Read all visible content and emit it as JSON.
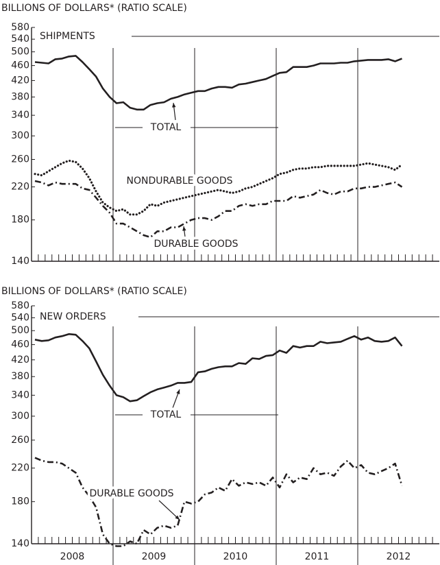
{
  "chart_data": [
    {
      "type": "line",
      "y_label": "BILLIONS OF DOLLARS* (RATIO SCALE)",
      "title": "SHIPMENTS",
      "log_scale": true,
      "grid": false,
      "x": [
        2008.042,
        2008.125,
        2008.208,
        2008.292,
        2008.375,
        2008.458,
        2008.542,
        2008.625,
        2008.708,
        2008.792,
        2008.875,
        2008.958,
        2009.042,
        2009.125,
        2009.208,
        2009.292,
        2009.375,
        2009.458,
        2009.542,
        2009.625,
        2009.708,
        2009.792,
        2009.875,
        2009.958,
        2010.042,
        2010.125,
        2010.208,
        2010.292,
        2010.375,
        2010.458,
        2010.542,
        2010.625,
        2010.708,
        2010.792,
        2010.875,
        2010.958,
        2011.042,
        2011.125,
        2011.208,
        2011.292,
        2011.375,
        2011.458,
        2011.542,
        2011.625,
        2011.708,
        2011.792,
        2011.875,
        2011.958,
        2012.042,
        2012.125,
        2012.208,
        2012.292,
        2012.375,
        2012.458,
        2012.542
      ],
      "xlim": [
        2008,
        2013
      ],
      "xticks": [
        2008,
        2009,
        2010,
        2011,
        2012
      ],
      "ylim": [
        140,
        580
      ],
      "yticks": [
        140,
        180,
        220,
        260,
        300,
        340,
        380,
        420,
        460,
        500,
        540,
        580
      ],
      "series": [
        {
          "name": "TOTAL",
          "color": "#231f20",
          "style": "solid",
          "values": [
            470,
            468,
            466,
            478,
            480,
            486,
            488,
            470,
            450,
            430,
            400,
            380,
            366,
            368,
            356,
            352,
            352,
            362,
            366,
            368,
            376,
            380,
            386,
            390,
            394,
            394,
            400,
            404,
            404,
            402,
            410,
            412,
            416,
            420,
            424,
            432,
            440,
            442,
            456,
            456,
            456,
            460,
            466,
            466,
            466,
            468,
            468,
            472,
            474,
            476,
            476,
            476,
            478,
            472,
            480
          ]
        },
        {
          "name": "NONDURABLE GOODS",
          "color": "#231f20",
          "style": "dotted",
          "values": [
            238,
            236,
            242,
            248,
            254,
            258,
            256,
            246,
            232,
            214,
            200,
            194,
            190,
            192,
            186,
            186,
            190,
            198,
            196,
            200,
            202,
            204,
            206,
            208,
            210,
            212,
            214,
            216,
            214,
            212,
            214,
            218,
            220,
            224,
            228,
            232,
            238,
            240,
            244,
            246,
            246,
            248,
            248,
            250,
            250,
            250,
            250,
            250,
            252,
            254,
            252,
            250,
            248,
            244,
            252
          ]
        },
        {
          "name": "DURABLE GOODS",
          "color": "#231f20",
          "style": "dashdot",
          "values": [
            228,
            226,
            222,
            226,
            224,
            224,
            224,
            218,
            216,
            206,
            196,
            188,
            176,
            176,
            172,
            168,
            164,
            162,
            168,
            168,
            172,
            172,
            176,
            180,
            182,
            182,
            180,
            184,
            190,
            190,
            196,
            198,
            196,
            198,
            198,
            202,
            202,
            202,
            208,
            206,
            208,
            210,
            216,
            212,
            210,
            214,
            214,
            218,
            218,
            220,
            220,
            222,
            224,
            226,
            220
          ]
        }
      ]
    },
    {
      "type": "line",
      "y_label": "BILLIONS OF DOLLARS* (RATIO SCALE)",
      "title": "NEW ORDERS",
      "log_scale": true,
      "grid": false,
      "x": [
        2008.042,
        2008.125,
        2008.208,
        2008.292,
        2008.375,
        2008.458,
        2008.542,
        2008.625,
        2008.708,
        2008.792,
        2008.875,
        2008.958,
        2009.042,
        2009.125,
        2009.208,
        2009.292,
        2009.375,
        2009.458,
        2009.542,
        2009.625,
        2009.708,
        2009.792,
        2009.875,
        2009.958,
        2010.042,
        2010.125,
        2010.208,
        2010.292,
        2010.375,
        2010.458,
        2010.542,
        2010.625,
        2010.708,
        2010.792,
        2010.875,
        2010.958,
        2011.042,
        2011.125,
        2011.208,
        2011.292,
        2011.375,
        2011.458,
        2011.542,
        2011.625,
        2011.708,
        2011.792,
        2011.875,
        2011.958,
        2012.042,
        2012.125,
        2012.208,
        2012.292,
        2012.375,
        2012.458,
        2012.542
      ],
      "xlim": [
        2008,
        2013
      ],
      "xticks": [
        2008,
        2009,
        2010,
        2011,
        2012
      ],
      "ylim": [
        140,
        580
      ],
      "yticks": [
        140,
        180,
        220,
        260,
        300,
        340,
        380,
        420,
        460,
        500,
        540,
        580
      ],
      "series": [
        {
          "name": "TOTAL",
          "color": "#231f20",
          "style": "solid",
          "values": [
            474,
            470,
            472,
            480,
            484,
            490,
            488,
            470,
            450,
            416,
            384,
            360,
            340,
            336,
            328,
            330,
            338,
            346,
            352,
            356,
            360,
            366,
            366,
            368,
            390,
            392,
            398,
            402,
            404,
            404,
            412,
            410,
            424,
            422,
            430,
            432,
            444,
            438,
            456,
            452,
            456,
            456,
            468,
            464,
            466,
            468,
            476,
            484,
            474,
            480,
            470,
            468,
            470,
            480,
            456
          ]
        },
        {
          "name": "DURABLE GOODS",
          "color": "#231f20",
          "style": "dashdot",
          "values": [
            234,
            230,
            228,
            228,
            226,
            220,
            214,
            196,
            186,
            174,
            148,
            140,
            138,
            138,
            142,
            140,
            152,
            148,
            154,
            156,
            154,
            156,
            180,
            178,
            180,
            188,
            190,
            196,
            192,
            206,
            198,
            202,
            200,
            202,
            198,
            208,
            196,
            212,
            202,
            208,
            206,
            220,
            212,
            214,
            210,
            222,
            230,
            220,
            224,
            214,
            212,
            216,
            220,
            226,
            198
          ]
        }
      ]
    }
  ]
}
